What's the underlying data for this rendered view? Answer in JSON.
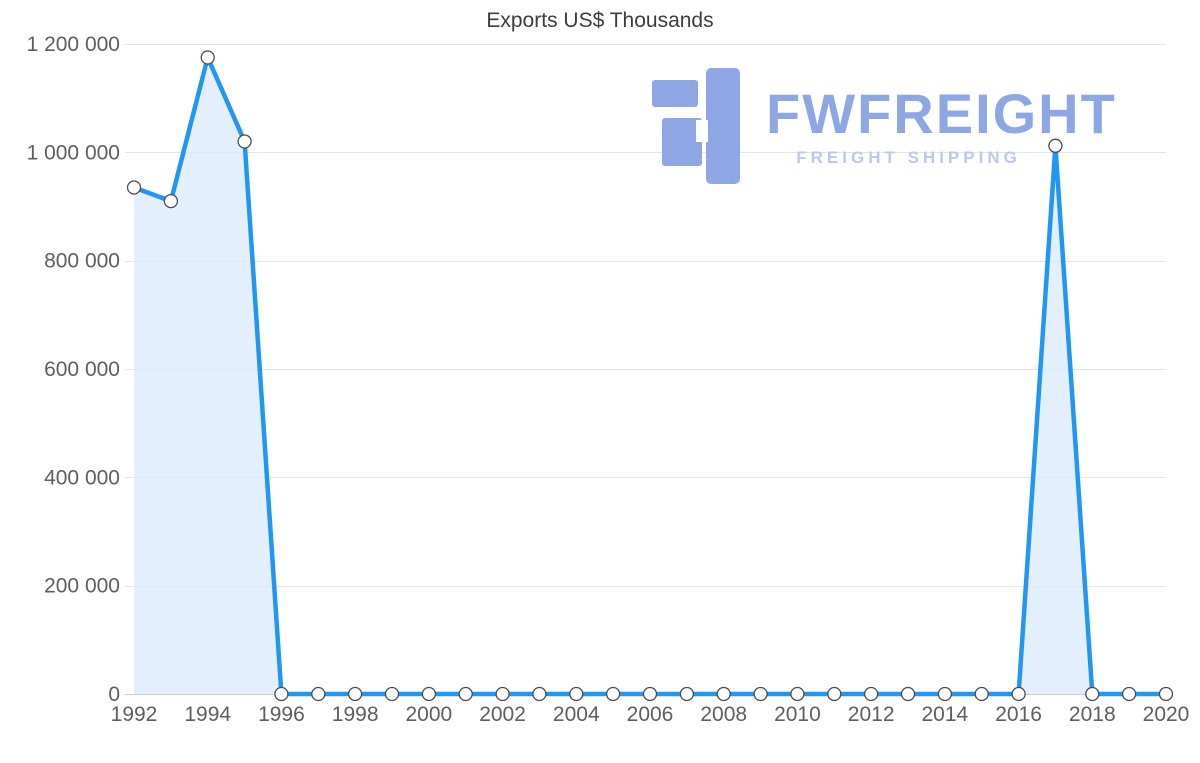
{
  "title": "Exports US$ Thousands",
  "watermark": {
    "brand": "FWFREIGHT",
    "tagline": "FREIGHT SHIPPING",
    "brand_color": "#8ea7e4",
    "tagline_color": "#b9c8ef",
    "logo_color": "#8ea7e4"
  },
  "chart_data": {
    "type": "area",
    "title": "Exports US$ Thousands",
    "x": [
      1992,
      1993,
      1994,
      1995,
      1996,
      1997,
      1998,
      1999,
      2000,
      2001,
      2002,
      2003,
      2004,
      2005,
      2006,
      2007,
      2008,
      2009,
      2010,
      2011,
      2012,
      2013,
      2014,
      2015,
      2016,
      2017,
      2018,
      2019,
      2020
    ],
    "values": [
      935000,
      910000,
      1175000,
      1020000,
      0,
      0,
      0,
      0,
      0,
      0,
      0,
      0,
      0,
      0,
      0,
      0,
      0,
      0,
      0,
      0,
      0,
      0,
      0,
      0,
      0,
      1012000,
      0,
      0,
      0
    ],
    "ylim": [
      0,
      1200000
    ],
    "ytick_values": [
      0,
      200000,
      400000,
      600000,
      800000,
      1000000,
      1200000
    ],
    "ytick_labels": [
      "0",
      "200 000",
      "400 000",
      "600 000",
      "800 000",
      "1 000 000",
      "1 200 000"
    ],
    "xtick_years": [
      1992,
      1994,
      1996,
      1998,
      2000,
      2002,
      2004,
      2006,
      2008,
      2010,
      2012,
      2014,
      2016,
      2018,
      2020
    ],
    "xlabel": "",
    "ylabel": "",
    "grid": "horizontal",
    "legend": "none",
    "line_color": "#2196f3",
    "area_color": "#d9e9fb",
    "grid_color": "#e4e4e4",
    "axis_color": "#cccccc",
    "marker_fill": "#ffffff",
    "marker_stroke": "#4a4a4a"
  }
}
